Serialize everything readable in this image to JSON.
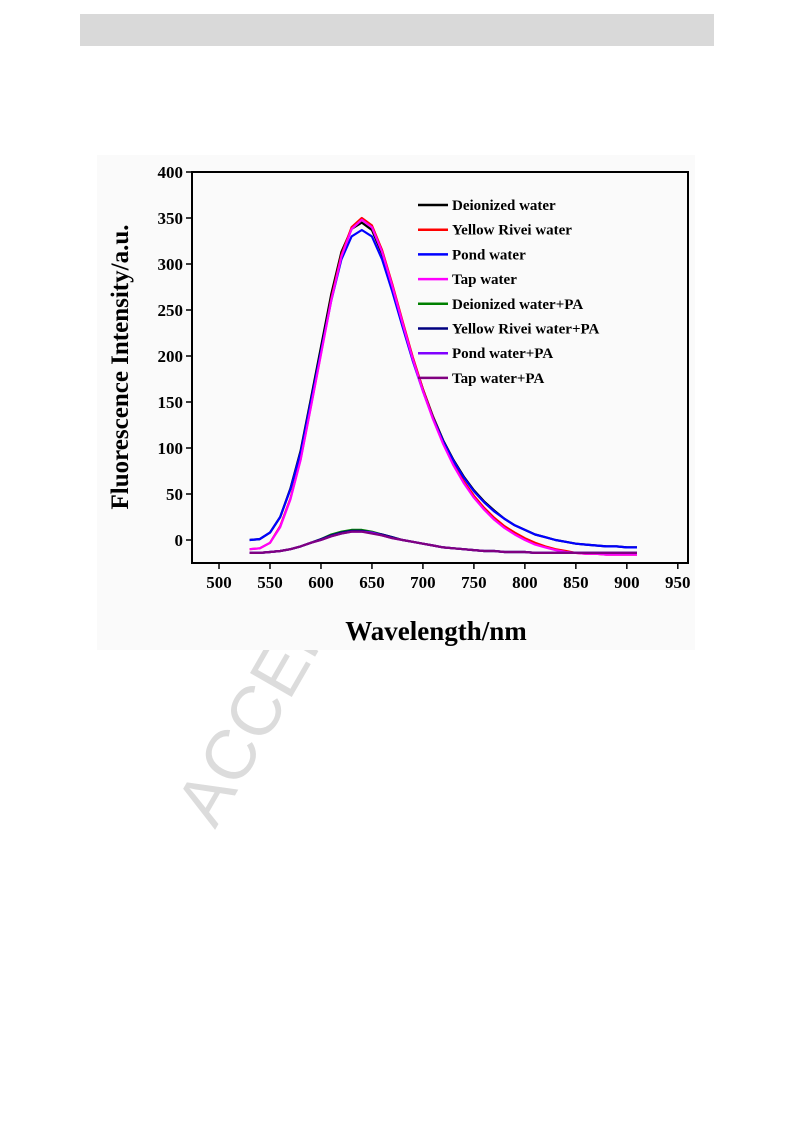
{
  "watermark": "ACCEPT",
  "chart_data": {
    "type": "line",
    "x_label": "Wavelength/nm",
    "y_label": "Fluorescence Intensity/a.u.",
    "x": [
      530,
      540,
      550,
      560,
      570,
      580,
      590,
      600,
      610,
      620,
      630,
      640,
      650,
      660,
      670,
      680,
      690,
      700,
      710,
      720,
      730,
      740,
      750,
      760,
      770,
      780,
      790,
      800,
      810,
      820,
      830,
      840,
      850,
      860,
      870,
      880,
      890,
      900,
      910
    ],
    "xlim": [
      473.5,
      960
    ],
    "xticks": [
      500,
      550,
      600,
      650,
      700,
      750,
      800,
      850,
      900,
      950
    ],
    "ylim": [
      -25,
      400
    ],
    "yticks": [
      0,
      50,
      100,
      150,
      200,
      250,
      300,
      350,
      400
    ],
    "legend": "top-right",
    "series": [
      {
        "name": "Deionized water",
        "color": "#000000",
        "values": [
          0,
          1,
          8,
          25,
          56,
          97,
          153,
          210,
          267,
          313,
          338,
          345,
          337,
          311,
          275,
          236,
          198,
          164,
          134,
          108,
          87,
          69,
          54,
          42,
          32,
          23,
          16,
          11,
          6,
          3,
          0,
          -2,
          -4,
          -5,
          -6,
          -7,
          -7,
          -8,
          -8
        ]
      },
      {
        "name": "Yellow Rivei water",
        "color": "#ff0000",
        "values": [
          -10,
          -9,
          -3,
          15,
          45,
          88,
          145,
          203,
          262,
          310,
          340,
          350,
          342,
          315,
          278,
          238,
          199,
          164,
          133,
          106,
          83,
          64,
          48,
          35,
          24,
          15,
          8,
          2,
          -3,
          -7,
          -10,
          -12,
          -14,
          -15,
          -15,
          -16,
          -16,
          -16,
          -16
        ]
      },
      {
        "name": "Pond water",
        "color": "#0000ff",
        "values": [
          0,
          1,
          8,
          25,
          55,
          95,
          150,
          205,
          260,
          305,
          330,
          337,
          330,
          305,
          270,
          232,
          195,
          162,
          132,
          107,
          86,
          68,
          53,
          41,
          31,
          23,
          16,
          11,
          6,
          3,
          0,
          -2,
          -4,
          -5,
          -6,
          -7,
          -7,
          -8,
          -8
        ]
      },
      {
        "name": "Tap water",
        "color": "#ff00ff",
        "values": [
          -10,
          -9,
          -3,
          14,
          44,
          87,
          144,
          202,
          260,
          308,
          338,
          348,
          340,
          313,
          276,
          236,
          197,
          162,
          131,
          104,
          81,
          62,
          46,
          33,
          22,
          13,
          6,
          0,
          -5,
          -8,
          -11,
          -13,
          -14,
          -15,
          -15,
          -16,
          -16,
          -16,
          -16
        ]
      },
      {
        "name": "Deionized water+PA",
        "color": "#008000",
        "values": [
          -14,
          -14,
          -13,
          -12,
          -10,
          -7,
          -3,
          1,
          6,
          9,
          11,
          11,
          9,
          6,
          3,
          0,
          -2,
          -4,
          -6,
          -8,
          -9,
          -10,
          -11,
          -12,
          -12,
          -13,
          -13,
          -13,
          -14,
          -14,
          -14,
          -14,
          -14,
          -14,
          -14,
          -14,
          -14,
          -14,
          -14
        ]
      },
      {
        "name": "Yellow Rivei water+PA",
        "color": "#000080",
        "values": [
          -14,
          -14,
          -13,
          -12,
          -10,
          -7,
          -3,
          1,
          5,
          8,
          10,
          10,
          8,
          6,
          3,
          0,
          -2,
          -4,
          -6,
          -8,
          -9,
          -10,
          -11,
          -12,
          -12,
          -13,
          -13,
          -13,
          -14,
          -14,
          -14,
          -14,
          -14,
          -14,
          -14,
          -14,
          -14,
          -14,
          -14
        ]
      },
      {
        "name": "Pond water+PA",
        "color": "#8000ff",
        "values": [
          -14,
          -14,
          -13,
          -12,
          -10,
          -7,
          -3,
          0,
          4,
          7,
          9,
          9,
          8,
          5,
          2,
          0,
          -2,
          -4,
          -6,
          -8,
          -9,
          -10,
          -11,
          -12,
          -12,
          -13,
          -13,
          -13,
          -14,
          -14,
          -14,
          -14,
          -14,
          -14,
          -14,
          -14,
          -14,
          -14,
          -14
        ]
      },
      {
        "name": "Tap water+PA",
        "color": "#800080",
        "values": [
          -14,
          -14,
          -13,
          -12,
          -10,
          -7,
          -3,
          0,
          4,
          7,
          9,
          9,
          7,
          5,
          2,
          0,
          -2,
          -4,
          -6,
          -8,
          -9,
          -10,
          -11,
          -12,
          -12,
          -13,
          -13,
          -13,
          -14,
          -14,
          -14,
          -14,
          -14,
          -14,
          -14,
          -14,
          -14,
          -14,
          -14
        ]
      }
    ]
  }
}
